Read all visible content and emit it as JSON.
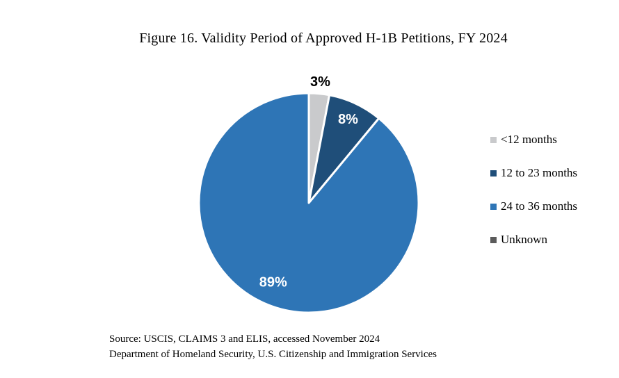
{
  "figure": {
    "title": "Figure 16. Validity Period of Approved H-1B Petitions, FY 2024",
    "source_line1": "Source: USCIS, CLAIMS 3 and ELIS, accessed November 2024",
    "source_line2": "Department of Homeland Security, U.S. Citizenship and Immigration Services"
  },
  "colors": {
    "background": "#FFFFFF",
    "slice_separator": "#FFFFFF",
    "outside_label": "#000000",
    "inside_label": "#FFFFFF"
  },
  "chart_data": {
    "type": "pie",
    "title": "Figure 16. Validity Period of Approved H-1B Petitions, FY 2024",
    "legend_position": "right",
    "direction": "clockwise",
    "start_angle_deg": 0,
    "categories": [
      "<12 months",
      "12 to 23 months",
      "24 to 36 months",
      "Unknown"
    ],
    "values": [
      3,
      8,
      89,
      0
    ],
    "slices": [
      {
        "label": "<12 months",
        "value": 3,
        "data_label": "3%",
        "color": "#C9CACC",
        "label_position": "outside",
        "label_r": 1.107
      },
      {
        "label": "12 to 23 months",
        "value": 8,
        "data_label": "8%",
        "color": "#1F4E79",
        "label_position": "inside",
        "label_r": 0.84
      },
      {
        "label": "24 to 36 months",
        "value": 89,
        "data_label": "89%",
        "color": "#2E75B6",
        "label_position": "inside",
        "label_r": 0.77,
        "label_dx": -10
      },
      {
        "label": "Unknown",
        "value": 0,
        "data_label": "",
        "color": "#5B5B5B",
        "label_position": "none"
      }
    ]
  }
}
